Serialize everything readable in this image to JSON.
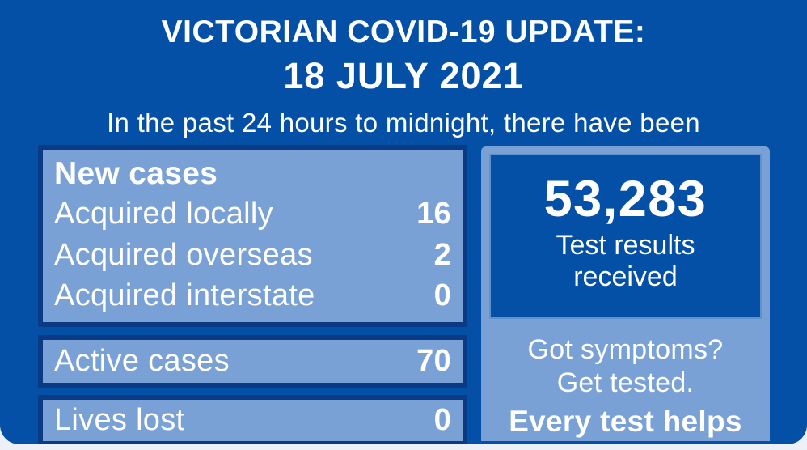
{
  "header": {
    "title": "VICTORIAN COVID-19 UPDATE:",
    "date": "18 JULY 2021",
    "subtitle": "In the past 24 hours to midnight, there have been"
  },
  "new_cases": {
    "heading": "New cases",
    "rows": [
      {
        "label": "Acquired locally",
        "value": "16"
      },
      {
        "label": "Acquired overseas",
        "value": "2"
      },
      {
        "label": "Acquired interstate",
        "value": "0"
      }
    ]
  },
  "active_cases": {
    "label": "Active cases",
    "value": "70"
  },
  "lives_lost": {
    "label": "Lives lost",
    "value": "0"
  },
  "testing": {
    "count": "53,283",
    "caption": "Test results received",
    "prompt": [
      "Got symptoms?",
      "Get tested."
    ],
    "tagline": "Every test helps"
  },
  "colors": {
    "background": "#0450A6",
    "panel": "#7AA1D6",
    "panel_border": "#0A3A84",
    "text": "#FFFFFF",
    "page_background": "#EDF0F6"
  }
}
